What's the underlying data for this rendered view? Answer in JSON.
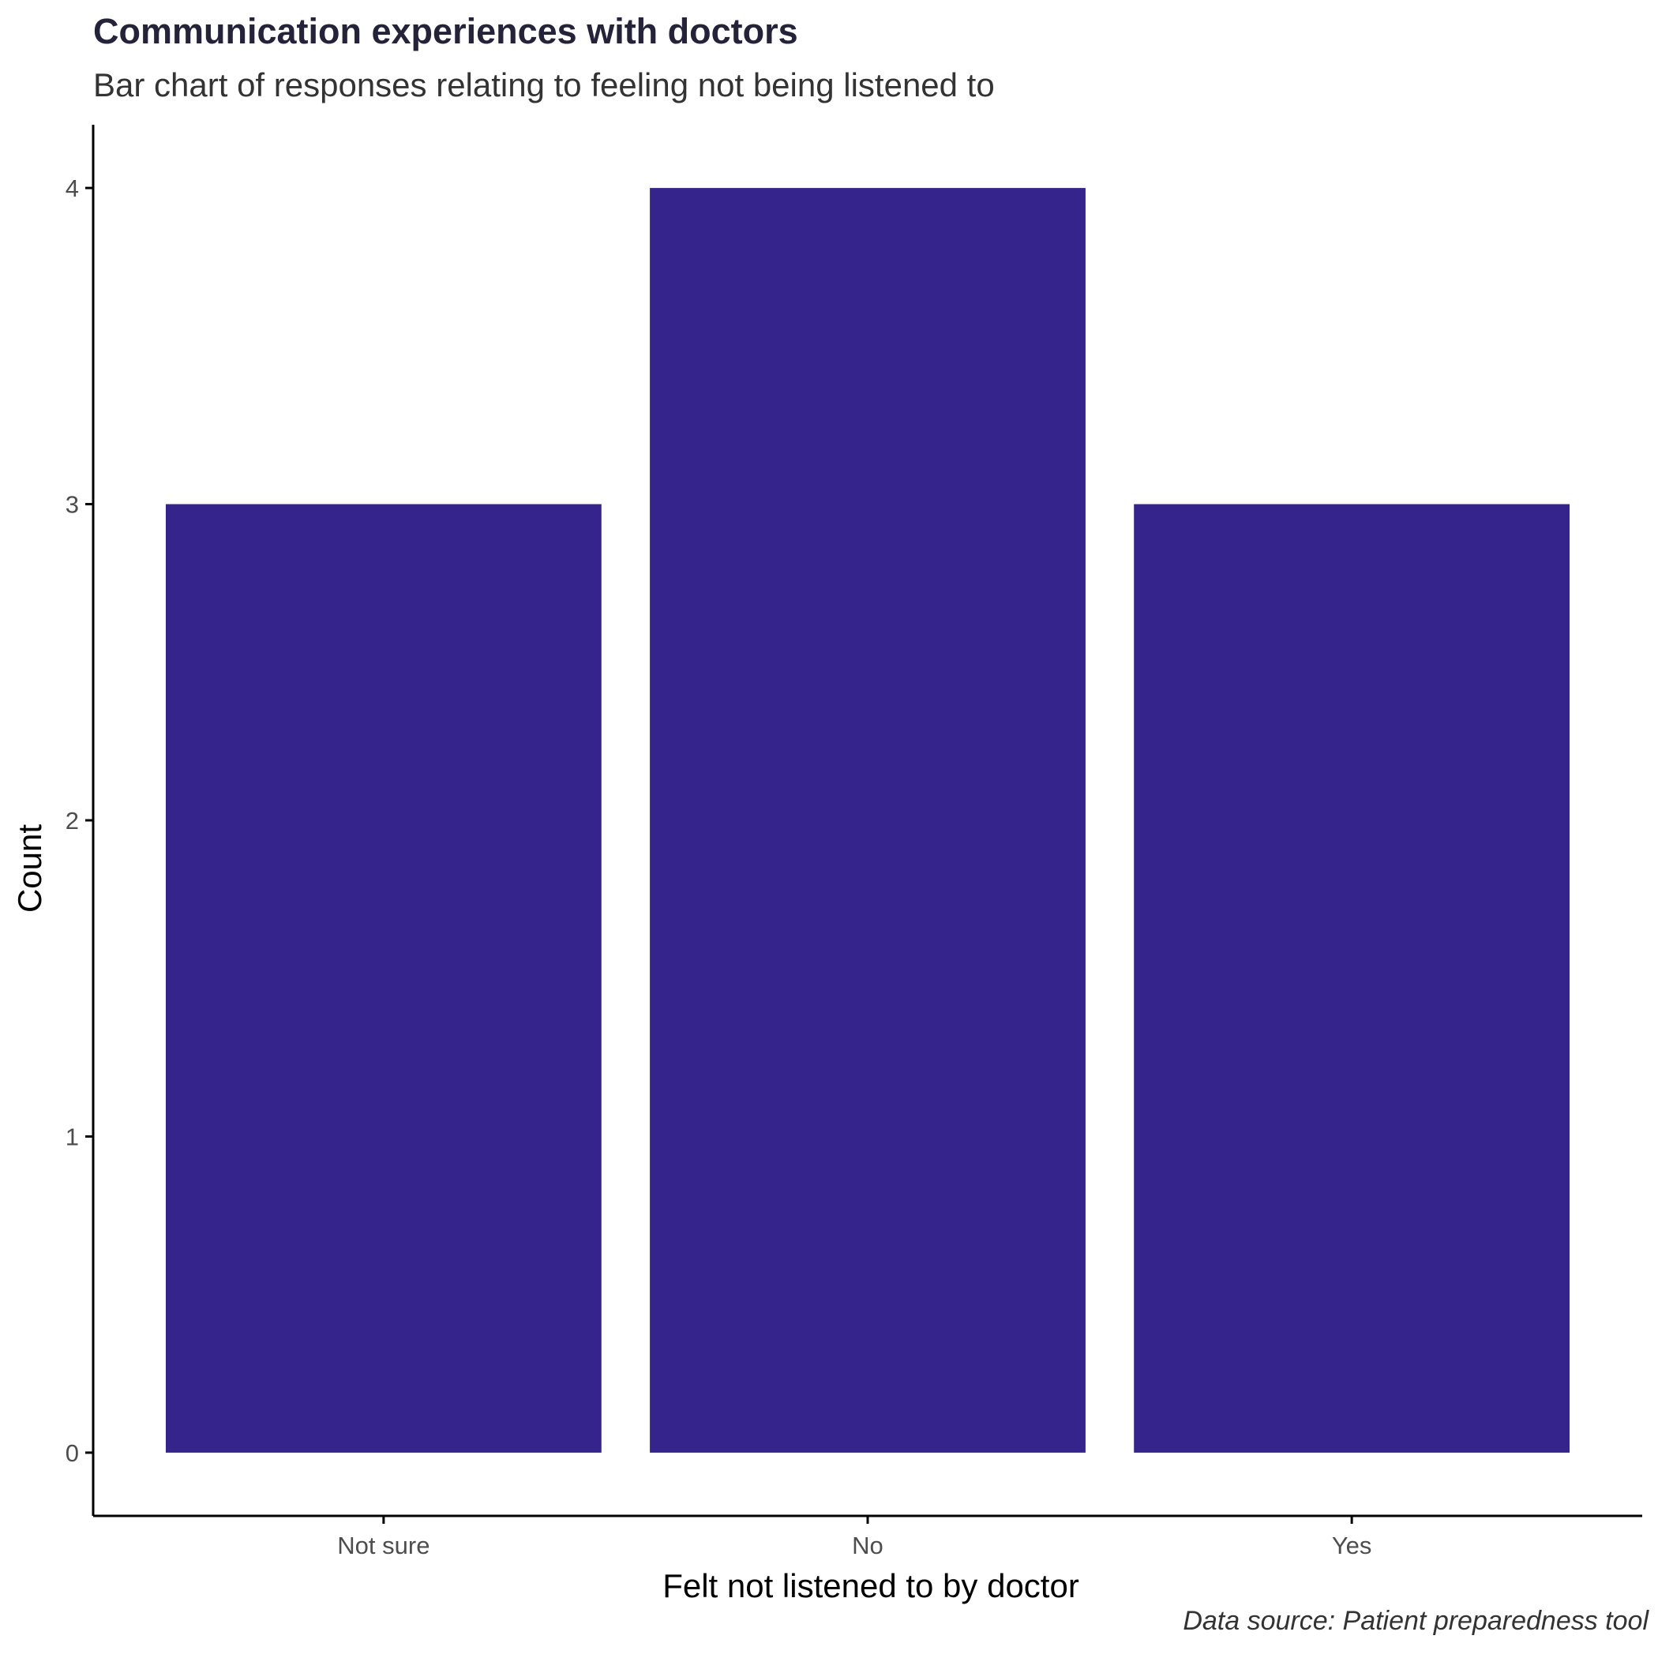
{
  "chart_data": {
    "type": "bar",
    "title": "Communication experiences with doctors",
    "subtitle": "Bar chart of responses relating to feeling not being listened to",
    "caption": "Data source: Patient preparedness tool",
    "xlabel": "Felt not listened to by doctor",
    "ylabel": "Count",
    "categories": [
      "Not sure",
      "No",
      "Yes"
    ],
    "values": [
      3,
      4,
      3
    ],
    "ylim": [
      -0.2,
      4.2
    ],
    "yticks": [
      0,
      1,
      2,
      3,
      4
    ],
    "bar_color": "#35248c",
    "grid": false,
    "legend": "none"
  }
}
